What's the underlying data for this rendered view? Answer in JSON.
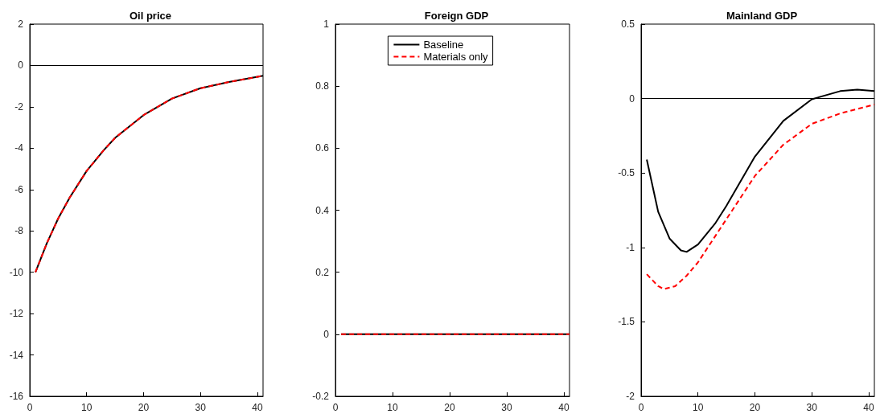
{
  "chart_data": [
    {
      "type": "line",
      "title": "Oil price",
      "xlim": [
        0,
        41
      ],
      "xticks": [
        0,
        10,
        20,
        30,
        40
      ],
      "ylim": [
        -16,
        2
      ],
      "yticks": [
        -16,
        -14,
        -12,
        -10,
        -8,
        -6,
        -4,
        -2,
        0,
        2
      ],
      "grid": false,
      "marker": "none",
      "x": [
        1,
        3,
        5,
        7,
        10,
        13,
        15,
        20,
        25,
        30,
        35,
        41
      ],
      "series": [
        {
          "color": "#000000",
          "line_style": "solid",
          "values": [
            -10,
            -8.6,
            -7.4,
            -6.4,
            -5.1,
            -4.1,
            -3.5,
            -2.4,
            -1.6,
            -1.1,
            -0.8,
            -0.5
          ]
        },
        {
          "color": "#ff0000",
          "line_style": "dashed",
          "values": [
            -10,
            -8.6,
            -7.4,
            -6.4,
            -5.1,
            -4.1,
            -3.5,
            -2.4,
            -1.6,
            -1.1,
            -0.8,
            -0.5
          ]
        }
      ],
      "ref_lines": [
        {
          "axis": "y",
          "value": 0,
          "color": "#000000"
        }
      ]
    },
    {
      "type": "line",
      "title": "Foreign GDP",
      "xlim": [
        0,
        41
      ],
      "xticks": [
        0,
        10,
        20,
        30,
        40
      ],
      "ylim": [
        -0.2,
        1
      ],
      "yticks": [
        -0.2,
        0,
        0.2,
        0.4,
        0.6,
        0.8,
        1
      ],
      "grid": false,
      "marker": "none",
      "legend": "top",
      "x": [
        1,
        41
      ],
      "series": [
        {
          "name": "Baseline",
          "color": "#000000",
          "line_style": "solid",
          "values": [
            0,
            0
          ]
        },
        {
          "name": "Materials only",
          "color": "#ff0000",
          "line_style": "dashed",
          "values": [
            0,
            0
          ]
        }
      ]
    },
    {
      "type": "line",
      "title": "Mainland GDP",
      "xlim": [
        0,
        41
      ],
      "xticks": [
        0,
        10,
        20,
        30,
        40
      ],
      "ylim": [
        -2,
        0.5
      ],
      "yticks": [
        -2,
        -1.5,
        -1,
        -0.5,
        0,
        0.5
      ],
      "grid": false,
      "marker": "none",
      "series": [
        {
          "color": "#000000",
          "line_style": "solid",
          "x": [
            1,
            3,
            5,
            7,
            8,
            10,
            13,
            15,
            20,
            25,
            30,
            35,
            38,
            41
          ],
          "values": [
            -0.41,
            -0.76,
            -0.94,
            -1.02,
            -1.03,
            -0.98,
            -0.84,
            -0.72,
            -0.39,
            -0.15,
            -0.005,
            0.05,
            0.06,
            0.05
          ]
        },
        {
          "color": "#ff0000",
          "line_style": "dashed",
          "x": [
            1,
            3,
            4,
            6,
            8,
            10,
            15,
            20,
            25,
            30,
            35,
            41
          ],
          "values": [
            -1.18,
            -1.26,
            -1.28,
            -1.26,
            -1.19,
            -1.1,
            -0.81,
            -0.52,
            -0.31,
            -0.17,
            -0.1,
            -0.04
          ]
        }
      ],
      "ref_lines": [
        {
          "axis": "y",
          "value": 0,
          "color": "#000000"
        }
      ]
    }
  ]
}
